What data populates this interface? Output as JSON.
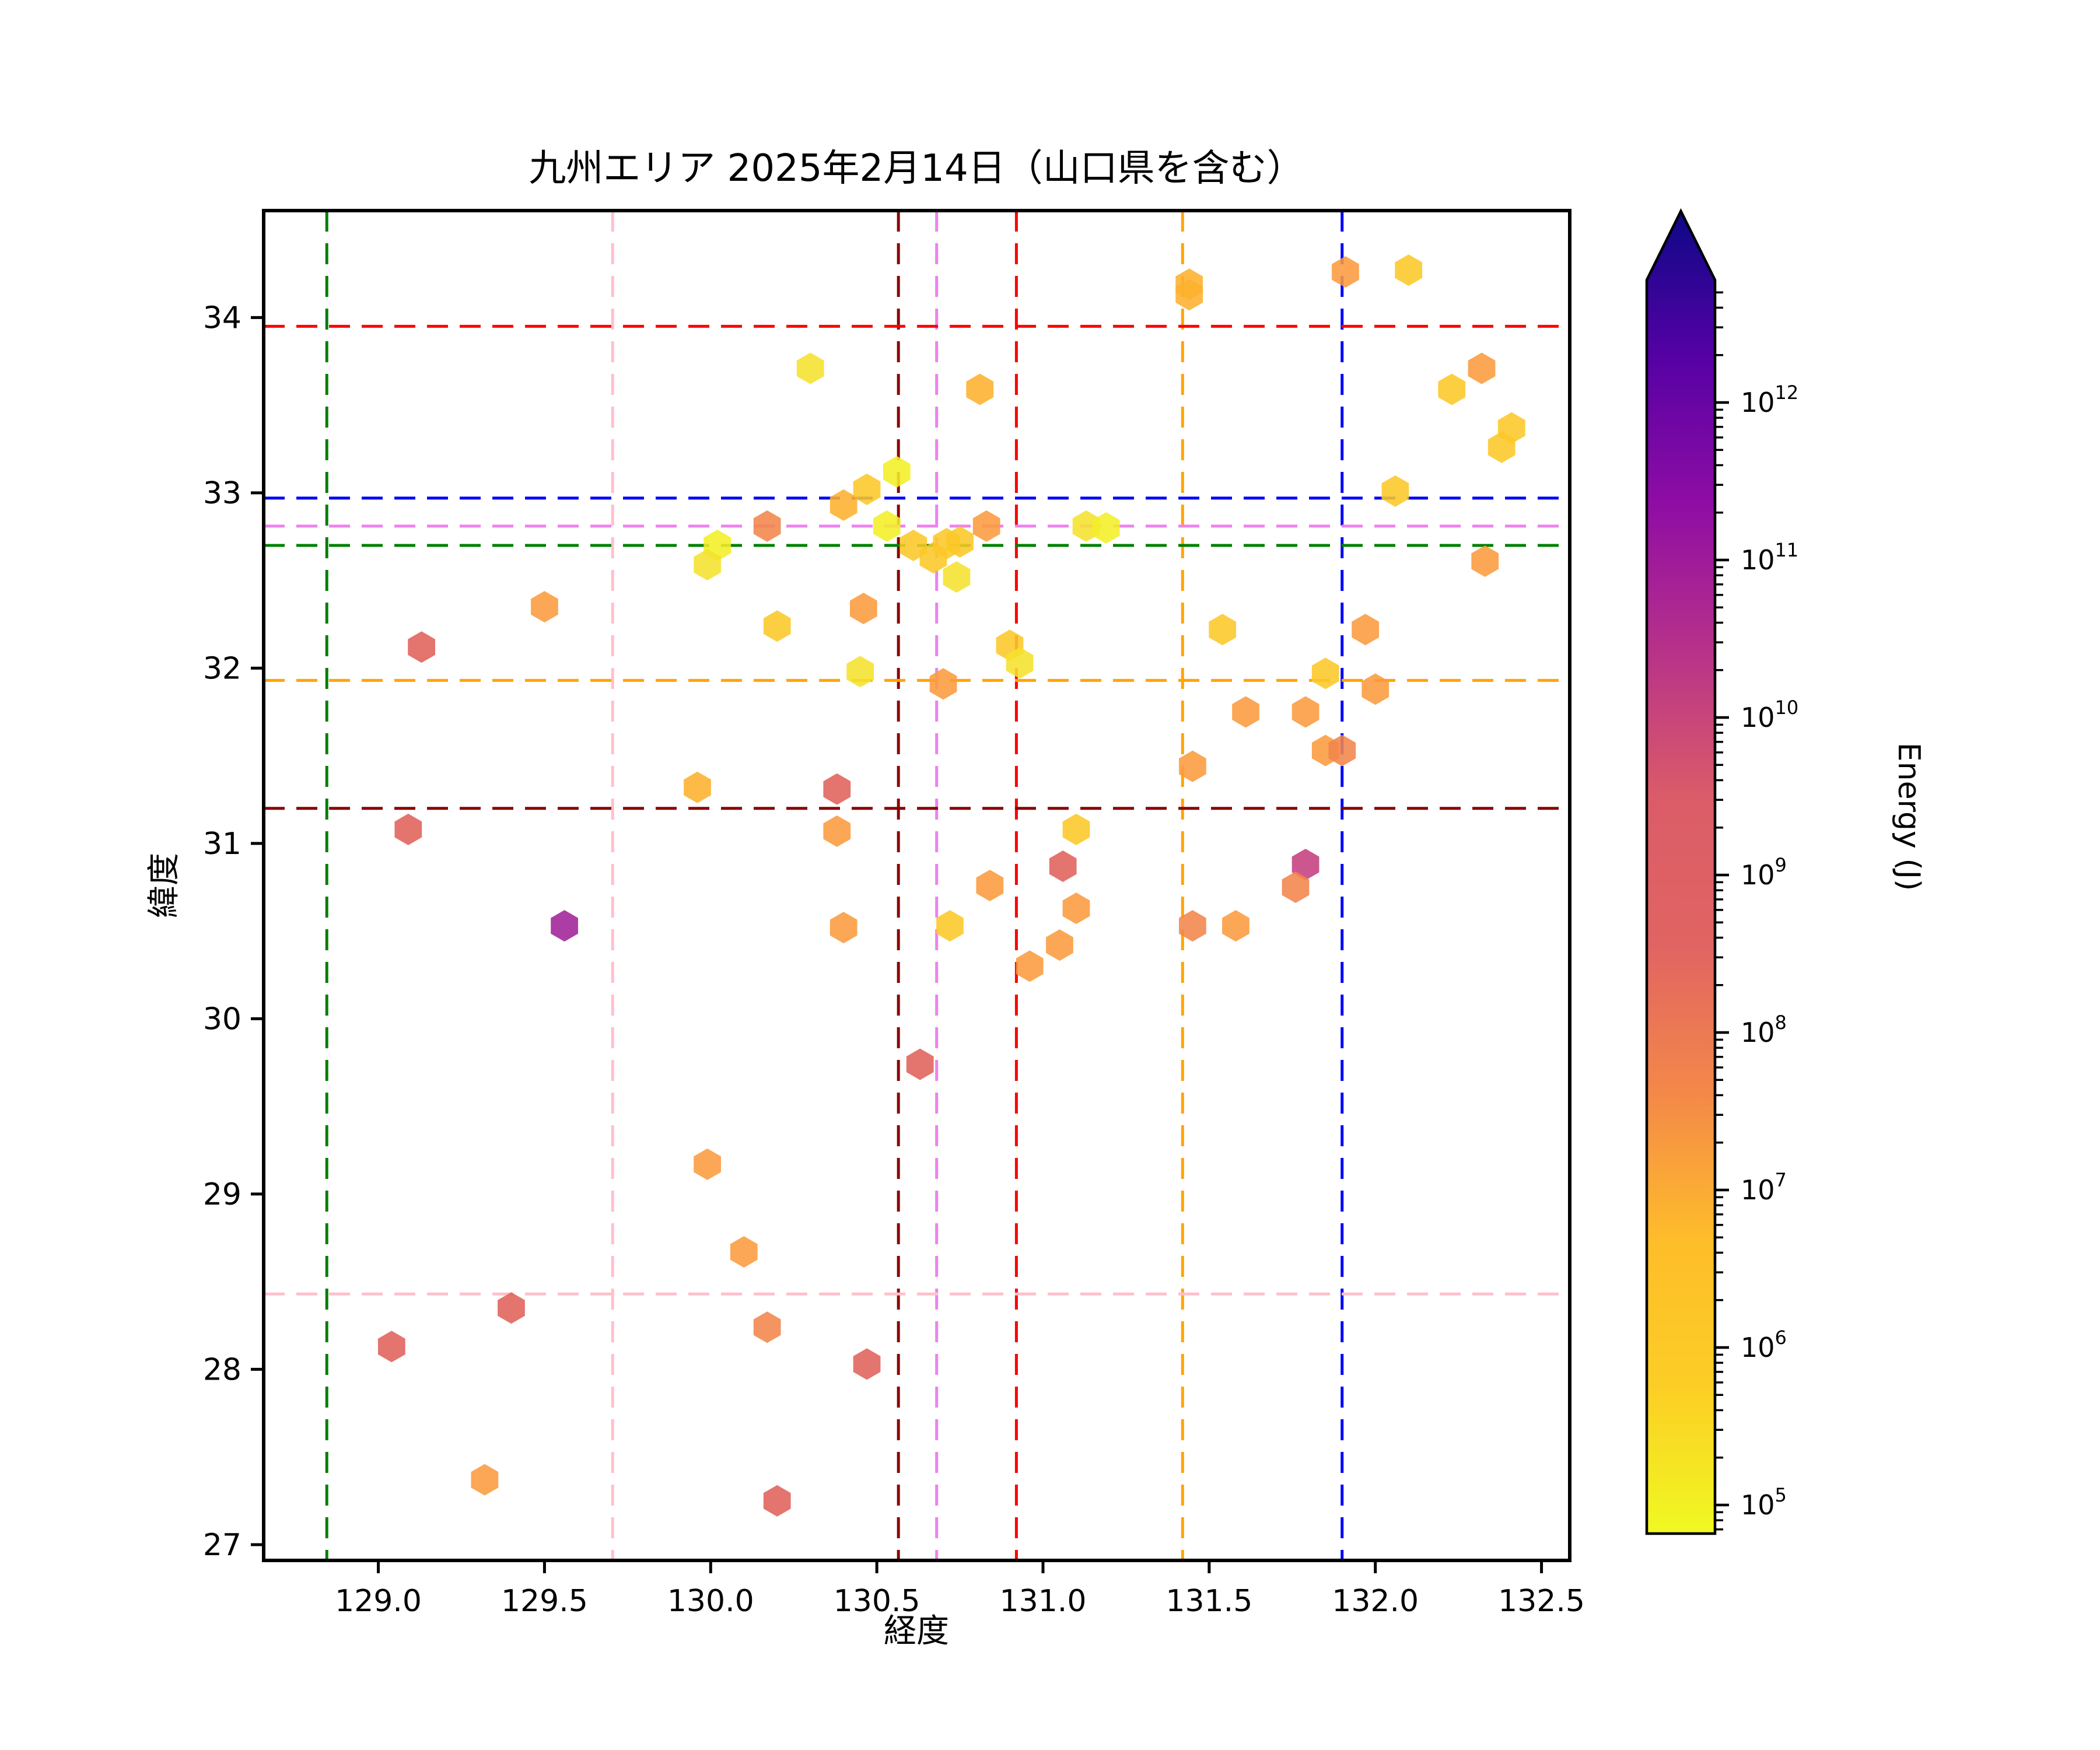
{
  "chart_data": {
    "type": "scatter",
    "title": "九州エリア 2025年2月14日（山口県を含む）",
    "xlabel": "経度",
    "ylabel": "緯度",
    "xlim": [
      128.655,
      132.585
    ],
    "ylim": [
      26.91,
      34.61
    ],
    "xticks": [
      129.0,
      129.5,
      130.0,
      130.5,
      131.0,
      131.5,
      132.0,
      132.5
    ],
    "xtick_labels": [
      "129.0",
      "129.5",
      "130.0",
      "130.5",
      "131.0",
      "131.5",
      "132.0",
      "132.5"
    ],
    "yticks": [
      27,
      28,
      29,
      30,
      31,
      32,
      33,
      34
    ],
    "ytick_labels": [
      "27",
      "28",
      "29",
      "30",
      "31",
      "32",
      "33",
      "34"
    ],
    "grid": false,
    "marker": "hexagon",
    "colormap": "plasma_r",
    "colorbar": {
      "label": "Energy (J)",
      "scale": "log",
      "extend": "max",
      "tick_exponents": [
        5,
        6,
        7,
        8,
        9,
        10,
        11,
        12
      ],
      "vmin": 70000,
      "vmax": 5000000000000,
      "gradient_bottom_to_top": [
        "#f0f921",
        "#fcce25",
        "#febd2a",
        "#f48849",
        "#e16462",
        "#db5c68",
        "#b83289",
        "#8f0da4",
        "#5601a4",
        "#0d0887"
      ]
    },
    "reference_lines": {
      "vertical": [
        {
          "name": "green-vline",
          "x": 128.845,
          "color": "#007f00"
        },
        {
          "name": "pink-vline",
          "x": 129.705,
          "color": "#ffc0cb"
        },
        {
          "name": "darkred-vline",
          "x": 130.565,
          "color": "#8b0000"
        },
        {
          "name": "violet-vline",
          "x": 130.68,
          "color": "#ee82ee"
        },
        {
          "name": "red-vline",
          "x": 130.92,
          "color": "#ff0000"
        },
        {
          "name": "orange-vline",
          "x": 131.42,
          "color": "#ffa500"
        },
        {
          "name": "blue-vline",
          "x": 131.9,
          "color": "#0000ff"
        }
      ],
      "horizontal": [
        {
          "name": "red-hline",
          "y": 33.95,
          "color": "#ff0000"
        },
        {
          "name": "blue-hline",
          "y": 32.97,
          "color": "#0000ff"
        },
        {
          "name": "violet-hline",
          "y": 32.81,
          "color": "#ee82ee"
        },
        {
          "name": "green-hline",
          "y": 32.7,
          "color": "#007f00"
        },
        {
          "name": "orange-hline",
          "y": 31.93,
          "color": "#ffa500"
        },
        {
          "name": "darkred-hline",
          "y": 31.2,
          "color": "#8b0000"
        },
        {
          "name": "pink-hline",
          "y": 28.43,
          "color": "#ffc0cb"
        }
      ]
    },
    "points_lon_lat_color_energy": [
      [
        130.3,
        33.71,
        "#f5e12c",
        300000
      ],
      [
        131.44,
        34.19,
        "#fdb02e",
        2500000
      ],
      [
        131.44,
        34.13,
        "#fdb02e",
        2500000
      ],
      [
        131.91,
        34.26,
        "#fb9b3d",
        6000000
      ],
      [
        132.1,
        34.27,
        "#fcc828",
        1000000
      ],
      [
        132.32,
        33.71,
        "#fb9b3d",
        6000000
      ],
      [
        130.81,
        33.59,
        "#fdb02e",
        2500000
      ],
      [
        132.23,
        33.59,
        "#fcc828",
        1000000
      ],
      [
        132.41,
        33.37,
        "#fcc828",
        1000000
      ],
      [
        132.38,
        33.26,
        "#fcc828",
        1000000
      ],
      [
        130.56,
        33.12,
        "#f3ef27",
        150000
      ],
      [
        130.47,
        33.02,
        "#fcc828",
        1000000
      ],
      [
        130.4,
        32.93,
        "#fdb02e",
        2500000
      ],
      [
        132.06,
        33.01,
        "#fcc828",
        1000000
      ],
      [
        130.17,
        32.81,
        "#f2854b",
        15000000
      ],
      [
        130.53,
        32.81,
        "#f3ef27",
        150000
      ],
      [
        130.83,
        32.81,
        "#fb9b3d",
        6000000
      ],
      [
        131.13,
        32.81,
        "#f5e12c",
        300000
      ],
      [
        131.19,
        32.8,
        "#f3ef27",
        150000
      ],
      [
        130.02,
        32.7,
        "#f3ef27",
        150000
      ],
      [
        129.99,
        32.59,
        "#f5e12c",
        300000
      ],
      [
        130.61,
        32.7,
        "#fcc828",
        1000000
      ],
      [
        130.71,
        32.71,
        "#fcc828",
        1000000
      ],
      [
        130.75,
        32.72,
        "#fcc828",
        1000000
      ],
      [
        130.67,
        32.63,
        "#fcc828",
        1000000
      ],
      [
        130.74,
        32.52,
        "#f5e12c",
        300000
      ],
      [
        130.2,
        32.24,
        "#fcc828",
        1000000
      ],
      [
        130.45,
        31.98,
        "#f5e12c",
        300000
      ],
      [
        130.9,
        32.13,
        "#fcc828",
        1000000
      ],
      [
        130.93,
        32.03,
        "#f5e12c",
        300000
      ],
      [
        130.7,
        31.91,
        "#fb9b3d",
        6000000
      ],
      [
        130.46,
        32.34,
        "#fb9b3d",
        6000000
      ],
      [
        129.5,
        32.35,
        "#fb9b3d",
        6000000
      ],
      [
        129.13,
        32.12,
        "#e0615a",
        100000000
      ],
      [
        131.54,
        32.22,
        "#fcc828",
        1000000
      ],
      [
        131.97,
        32.22,
        "#fb9b3d",
        6000000
      ],
      [
        131.85,
        31.97,
        "#fcc828",
        1000000
      ],
      [
        132.0,
        31.88,
        "#fb9b3d",
        6000000
      ],
      [
        132.33,
        32.61,
        "#fb9b3d",
        6000000
      ],
      [
        131.61,
        31.75,
        "#fb9b3d",
        6000000
      ],
      [
        131.79,
        31.75,
        "#fb9b3d",
        6000000
      ],
      [
        131.85,
        31.53,
        "#fb9b3d",
        6000000
      ],
      [
        131.9,
        31.53,
        "#f2854b",
        15000000
      ],
      [
        131.45,
        31.44,
        "#fb9b3d",
        6000000
      ],
      [
        129.96,
        31.32,
        "#fdb02e",
        2500000
      ],
      [
        130.38,
        31.31,
        "#e0615a",
        100000000
      ],
      [
        130.38,
        31.07,
        "#fb9b3d",
        6000000
      ],
      [
        129.09,
        31.08,
        "#e0615a",
        100000000
      ],
      [
        131.1,
        31.08,
        "#fcc828",
        1000000
      ],
      [
        131.06,
        30.87,
        "#e0615a",
        100000000
      ],
      [
        130.84,
        30.76,
        "#fb9b3d",
        6000000
      ],
      [
        130.72,
        30.53,
        "#fcc828",
        1000000
      ],
      [
        131.1,
        30.63,
        "#fb9b3d",
        6000000
      ],
      [
        131.05,
        30.42,
        "#fb9b3d",
        6000000
      ],
      [
        130.96,
        30.3,
        "#fb9b3d",
        6000000
      ],
      [
        131.79,
        30.88,
        "#c5407e",
        700000000
      ],
      [
        131.76,
        30.75,
        "#f2854b",
        15000000
      ],
      [
        131.45,
        30.53,
        "#f2854b",
        15000000
      ],
      [
        131.58,
        30.53,
        "#fb9b3d",
        6000000
      ],
      [
        129.56,
        30.53,
        "#a02298",
        15000000000
      ],
      [
        130.4,
        30.52,
        "#fb9b3d",
        6000000
      ],
      [
        130.63,
        29.74,
        "#e0615a",
        100000000
      ],
      [
        129.99,
        29.17,
        "#fb9b3d",
        6000000
      ],
      [
        130.1,
        28.67,
        "#fb9b3d",
        6000000
      ],
      [
        129.4,
        28.35,
        "#e0615a",
        100000000
      ],
      [
        129.04,
        28.13,
        "#e0615a",
        100000000
      ],
      [
        130.17,
        28.24,
        "#f2854b",
        15000000
      ],
      [
        130.47,
        28.03,
        "#e0615a",
        100000000
      ],
      [
        129.32,
        27.37,
        "#fb9b3d",
        6000000
      ],
      [
        130.2,
        27.25,
        "#e0615a",
        100000000
      ]
    ]
  }
}
